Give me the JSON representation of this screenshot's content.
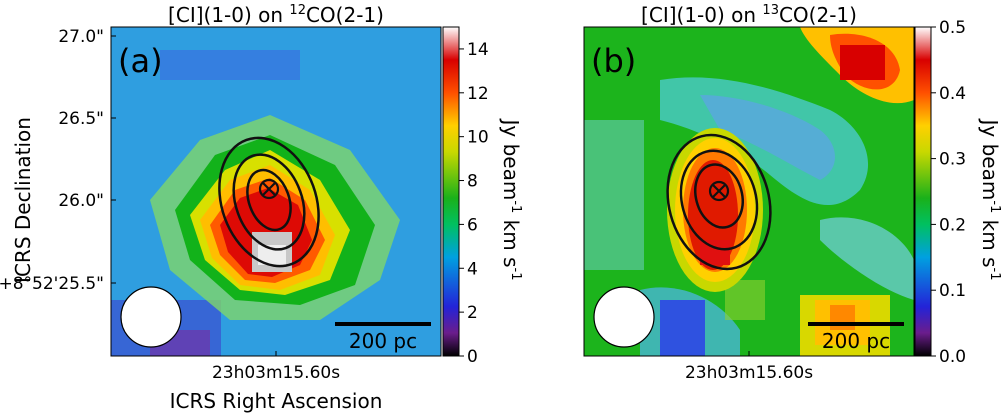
{
  "chart_data": [
    {
      "type": "heatmap",
      "panel_label": "(a)",
      "title_parts": [
        "[CI](1-0) on ",
        "12",
        "CO(2-1)"
      ],
      "colorbar": {
        "min": 0,
        "max": 15,
        "ticks": [
          0,
          2,
          4,
          6,
          8,
          10,
          12,
          14
        ],
        "label_parts": [
          "Jy beam",
          "-1",
          " km s",
          "-1"
        ]
      },
      "yticks": [
        "27.0\"",
        "26.5\"",
        "26.0\"",
        "+8°52'25.5\""
      ],
      "xtick": "23h03m15.60s",
      "ylabel": "ICRS Declination",
      "xlabel": "ICRS Right Ascension",
      "scalebar_label": "200 pc",
      "peak_value": 14.5,
      "contour_count": 3,
      "marker": "peak position (circled x)"
    },
    {
      "type": "heatmap",
      "panel_label": "(b)",
      "title_parts": [
        "[CI](1-0) on ",
        "13",
        "CO(2-1)"
      ],
      "colorbar": {
        "min": 0.0,
        "max": 0.5,
        "ticks": [
          0.0,
          0.1,
          0.2,
          0.3,
          0.4,
          0.5
        ],
        "tick_labels": [
          "0.0",
          "0.1",
          "0.2",
          "0.3",
          "0.4",
          "0.5"
        ],
        "label_parts": [
          "Jy beam",
          "-1",
          " km s",
          "-1"
        ]
      },
      "xtick": "23h03m15.60s",
      "scalebar_label": "200 pc",
      "peak_value": 0.45,
      "contour_count": 3,
      "marker": "peak position (circled x)"
    }
  ],
  "colors": {
    "colormap": [
      "#000000",
      "#6b1d8c",
      "#2323d8",
      "#00a0e0",
      "#00c060",
      "#1ab11a",
      "#c8d800",
      "#ffd000",
      "#ff5000",
      "#d80000",
      "#ffffff"
    ],
    "contour": "#111111",
    "beam": "#ffffff"
  }
}
